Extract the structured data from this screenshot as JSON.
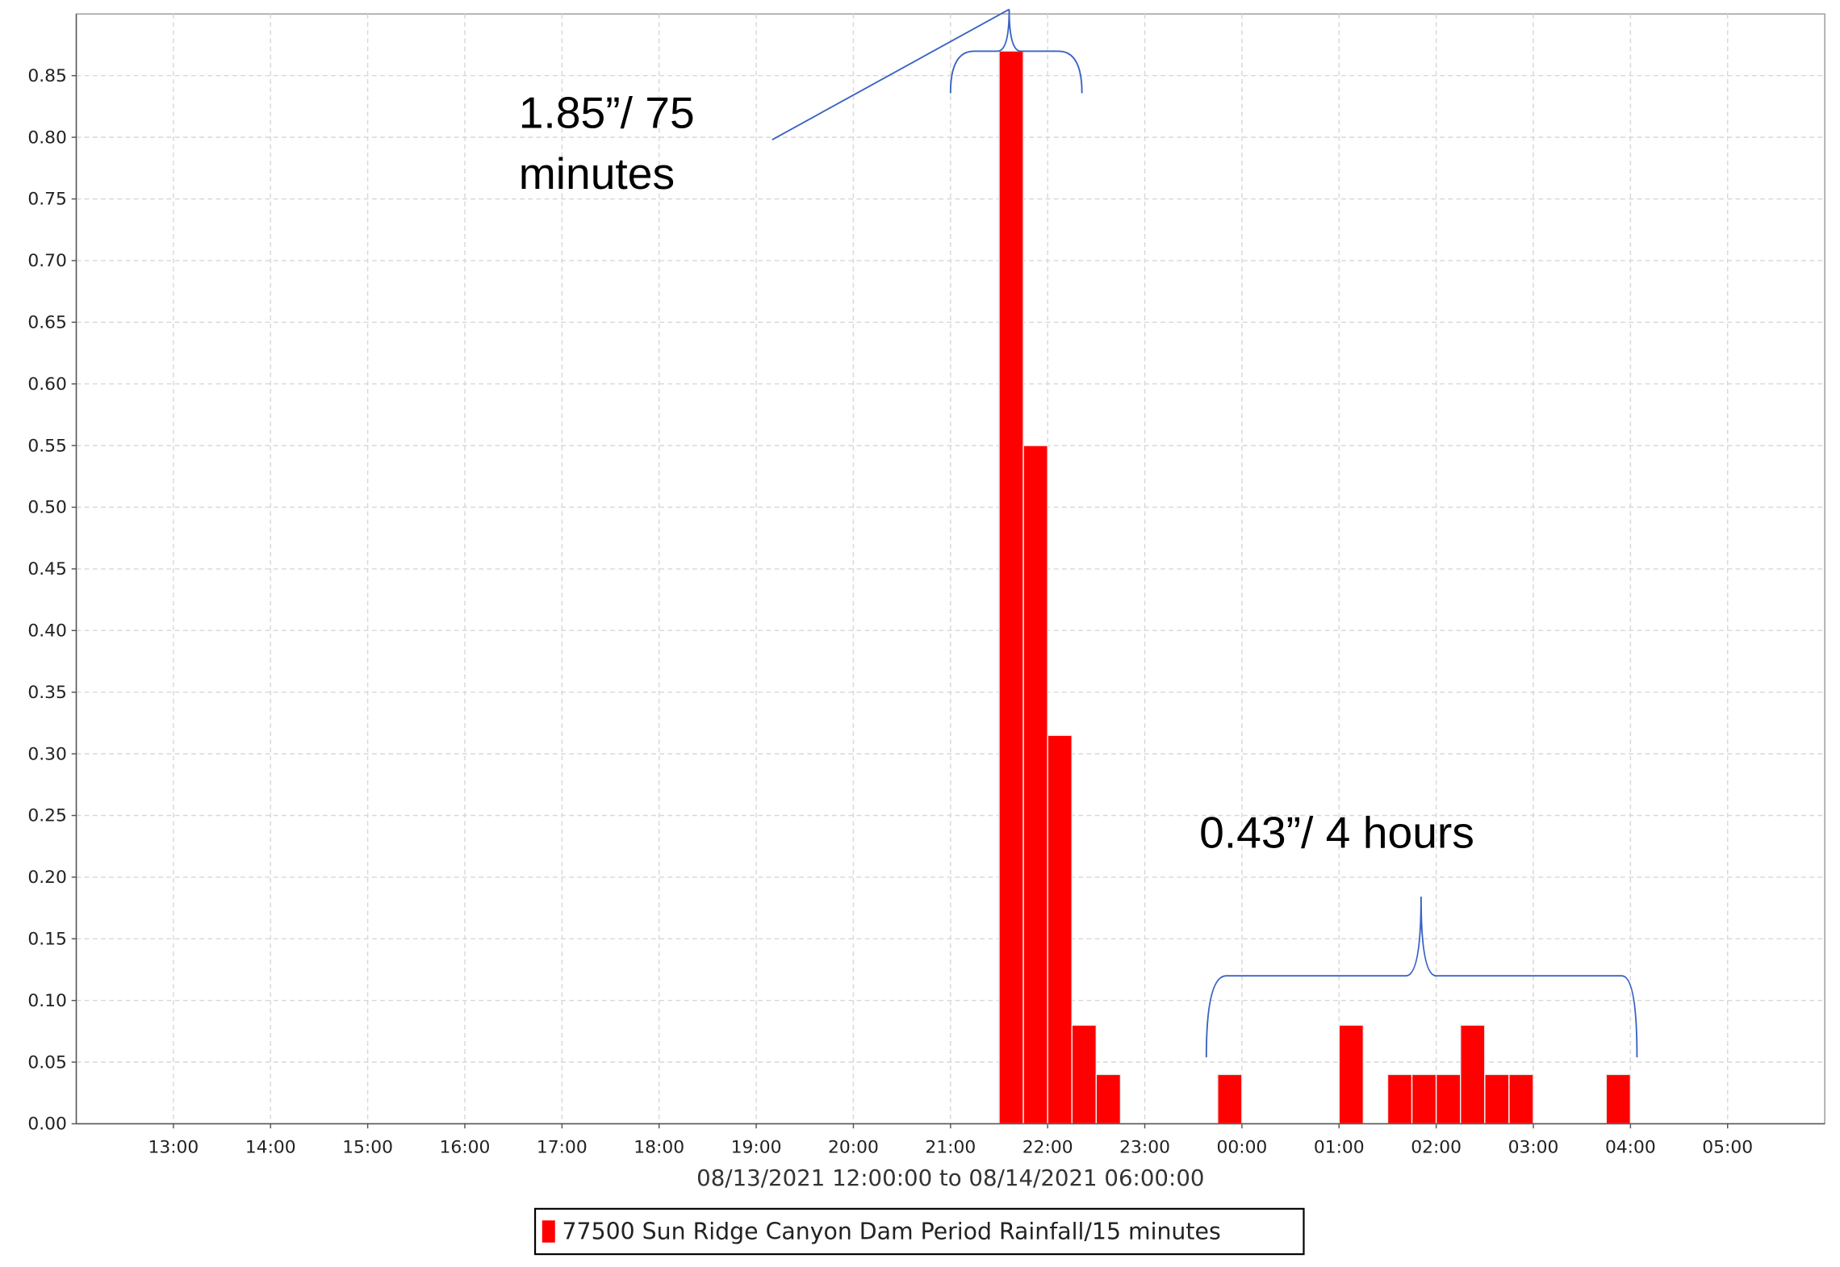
{
  "chart_data": {
    "type": "bar",
    "x_label": "08/13/2021 12:00:00 to 08/14/2021 06:00:00",
    "xlim": [
      "12:00",
      "06:00"
    ],
    "xticks": [
      "13:00",
      "14:00",
      "15:00",
      "16:00",
      "17:00",
      "18:00",
      "19:00",
      "20:00",
      "21:00",
      "22:00",
      "23:00",
      "00:00",
      "01:00",
      "02:00",
      "03:00",
      "04:00",
      "05:00"
    ],
    "ylim": [
      0,
      0.9
    ],
    "yticks": [
      {
        "value": 0,
        "label": "0.00"
      },
      0.05,
      {
        "value": 0.1,
        "label": "0.10"
      },
      0.15,
      {
        "value": 0.2,
        "label": "0.20"
      },
      0.25,
      {
        "value": 0.3,
        "label": "0.30"
      },
      0.35,
      {
        "value": 0.4,
        "label": "0.40"
      },
      0.45,
      {
        "value": 0.5,
        "label": "0.50"
      },
      0.55,
      {
        "value": 0.6,
        "label": "0.60"
      },
      0.65,
      {
        "value": 0.7,
        "label": "0.70"
      },
      0.75,
      {
        "value": 0.8,
        "label": "0.80"
      },
      0.85
    ],
    "grid": true,
    "series": [
      {
        "name": "77500 Sun Ridge Canyon Dam Period Rainfall/15 minutes",
        "color": "#ff0000",
        "x": [
          "21:30",
          "21:45",
          "22:00",
          "22:15",
          "22:30",
          "23:45",
          "01:00",
          "01:30",
          "01:45",
          "02:00",
          "02:15",
          "02:30",
          "02:45",
          "03:45"
        ],
        "values": [
          0.87,
          0.55,
          0.315,
          0.08,
          0.04,
          0.04,
          0.08,
          0.04,
          0.04,
          0.04,
          0.08,
          0.04,
          0.04,
          0.04
        ]
      }
    ],
    "annotations": [
      {
        "lines": [
          "1.85”/ 75",
          "minutes"
        ]
      },
      {
        "lines": [
          "0.43”/ 4 hours"
        ]
      }
    ]
  }
}
